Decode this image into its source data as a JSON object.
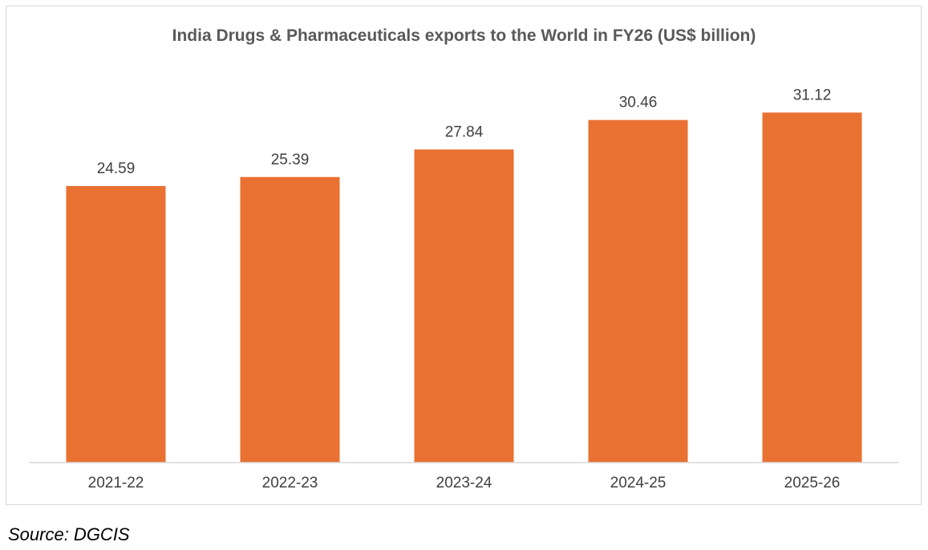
{
  "chart_data": {
    "type": "bar",
    "title": "India Drugs & Pharmaceuticals exports to the World in FY26 (US$ billion)",
    "categories": [
      "2021-22",
      "2022-23",
      "2023-24",
      "2024-25",
      "2025-26"
    ],
    "values": [
      24.59,
      25.39,
      27.84,
      30.46,
      31.12
    ],
    "data_labels": [
      "24.59",
      "25.39",
      "27.84",
      "30.46",
      "31.12"
    ],
    "xlabel": "",
    "ylabel": "",
    "ylim": [
      0,
      35
    ],
    "grid": false,
    "bar_color": "#E97132",
    "axis_color": "#d9d9d9"
  },
  "source": "Source: DGCIS"
}
